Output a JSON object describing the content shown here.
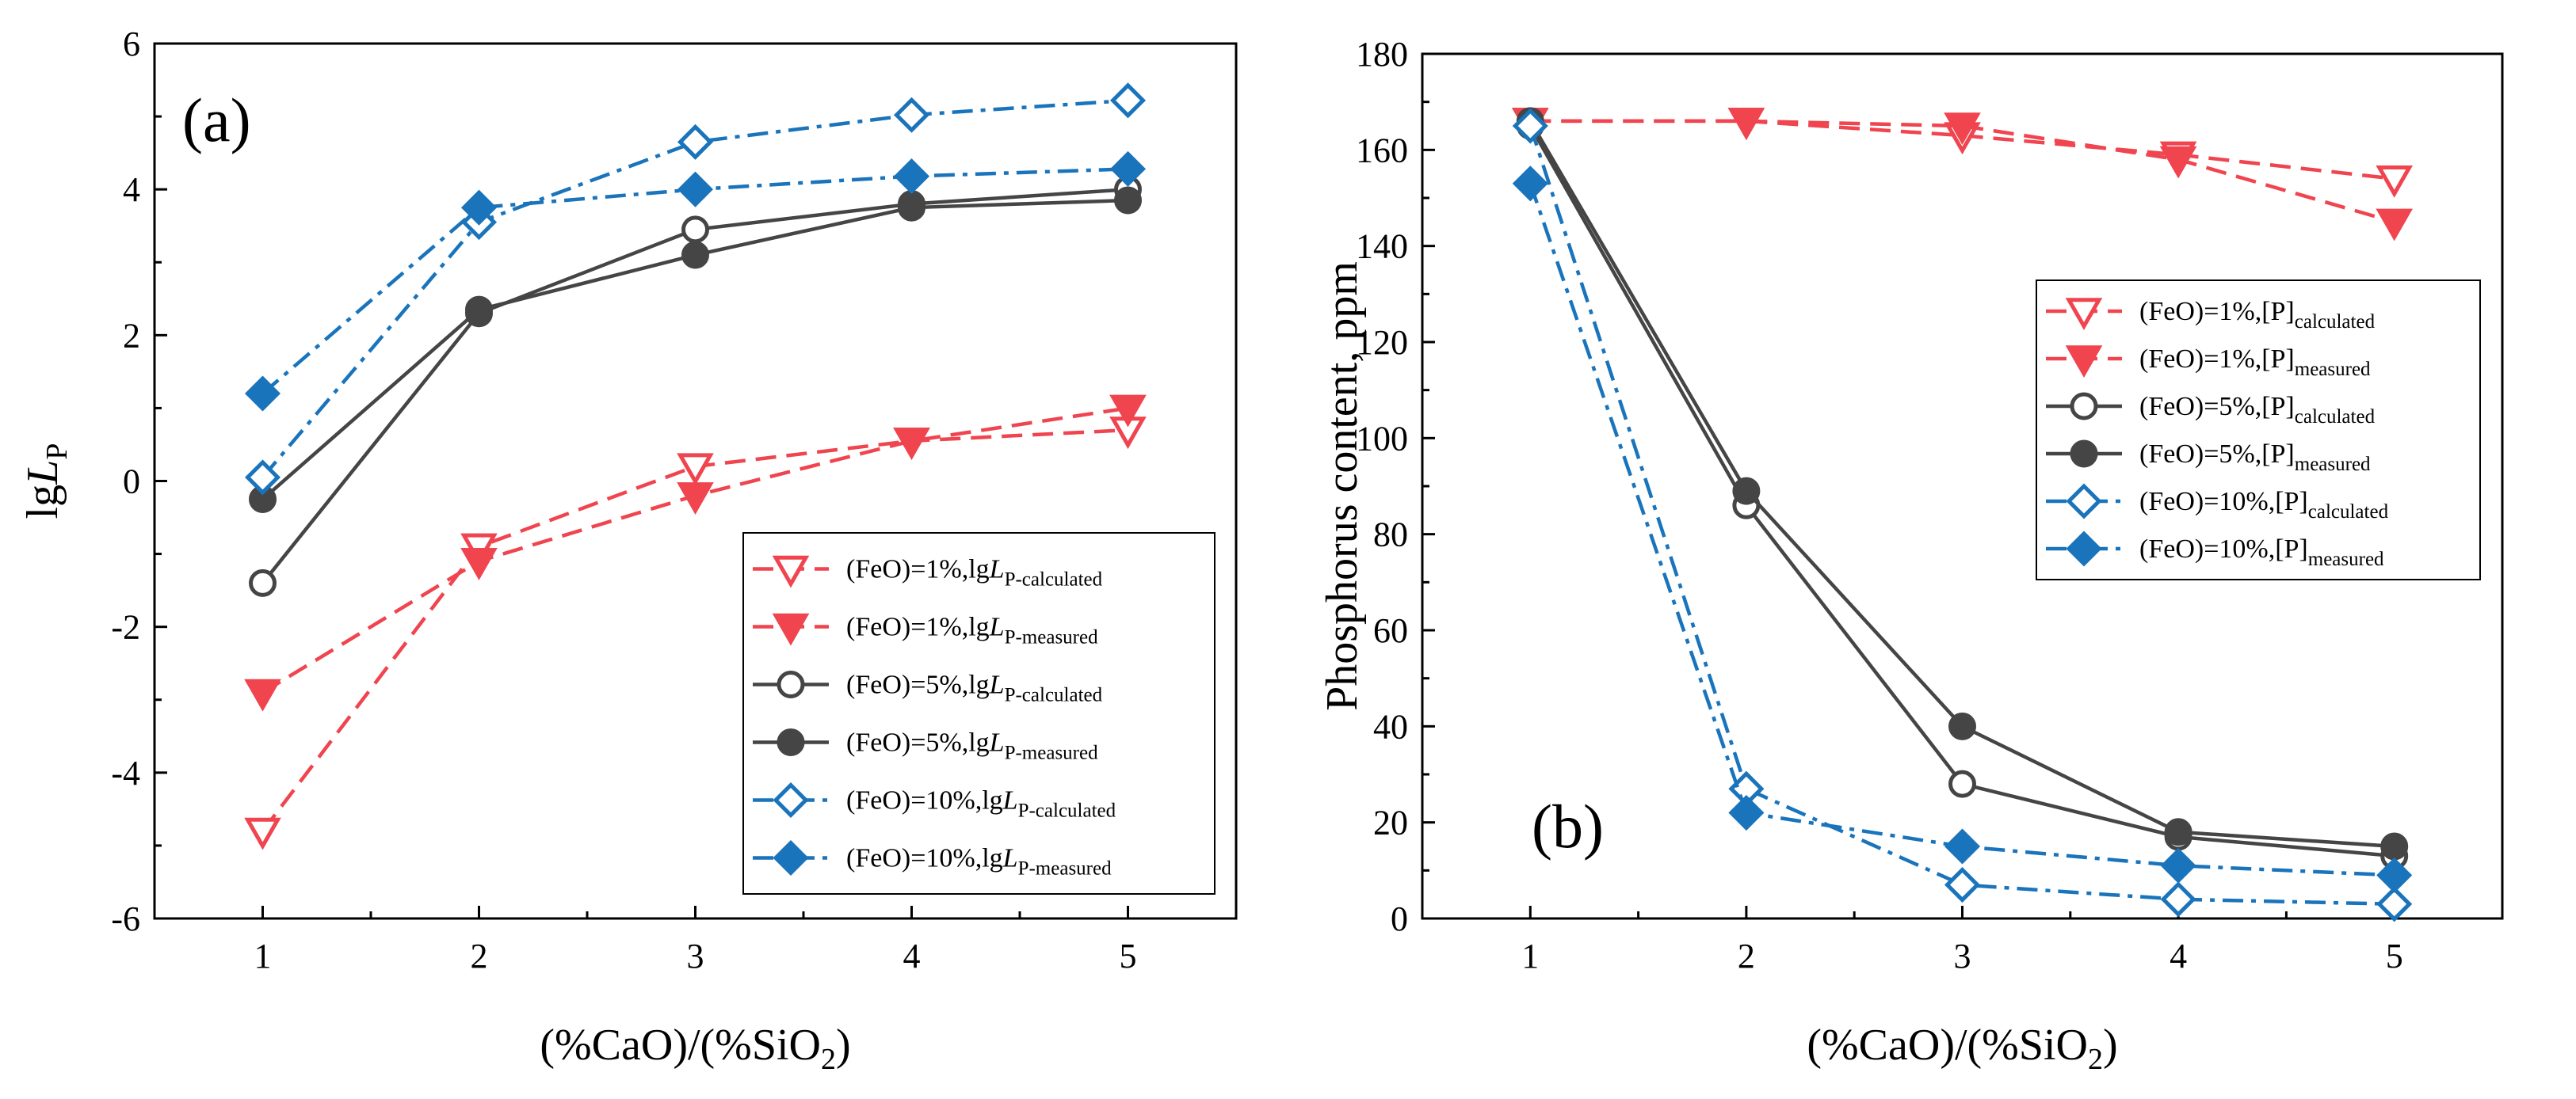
{
  "chart_data": [
    {
      "type": "line",
      "panel_label": "(a)",
      "xlabel": "(%CaO)/(%SiO",
      "xlabel_sub": "2",
      "xlabel_end": ")",
      "ylabel": "lg",
      "ylabel_italic": "L",
      "ylabel_sub": "P",
      "xlim": [
        0.5,
        5.5
      ],
      "ylim": [
        -6,
        6
      ],
      "xticks": [
        "1",
        "2",
        "3",
        "4",
        "5"
      ],
      "yticks": [
        "-6",
        "-4",
        "-2",
        "0",
        "2",
        "4",
        "6"
      ],
      "x": [
        1,
        2,
        3,
        4,
        5
      ],
      "legend_position": "lower-right",
      "series": [
        {
          "name": "(FeO)=1%,lg",
          "name_italic": "L",
          "name_sub": "P-calculated",
          "color": "#f0444f",
          "marker": "triangle-down",
          "filled": false,
          "dash": "dash",
          "values": [
            -4.8,
            -0.9,
            0.2,
            0.55,
            0.7
          ]
        },
        {
          "name": "(FeO)=1%,lg",
          "name_italic": "L",
          "name_sub": "P-measured",
          "color": "#f0444f",
          "marker": "triangle-down",
          "filled": true,
          "dash": "dash",
          "values": [
            -2.9,
            -1.1,
            -0.2,
            0.55,
            1.0
          ]
        },
        {
          "name": "(FeO)=5%,lg",
          "name_italic": "L",
          "name_sub": "P-calculated",
          "color": "#454545",
          "marker": "circle",
          "filled": false,
          "dash": "solid",
          "values": [
            -1.4,
            2.3,
            3.45,
            3.8,
            4.0
          ]
        },
        {
          "name": "(FeO)=5%,lg",
          "name_italic": "L",
          "name_sub": "P-measured",
          "color": "#454545",
          "marker": "circle",
          "filled": true,
          "dash": "solid",
          "values": [
            -0.25,
            2.35,
            3.1,
            3.75,
            3.85
          ]
        },
        {
          "name": "(FeO)=10%,lg",
          "name_italic": "L",
          "name_sub": "P-calculated",
          "color": "#1a74bb",
          "marker": "diamond",
          "filled": false,
          "dash": "dashdot",
          "values": [
            0.05,
            3.55,
            4.65,
            5.02,
            5.22
          ]
        },
        {
          "name": "(FeO)=10%,lg",
          "name_italic": "L",
          "name_sub": "P-measured",
          "color": "#1a74bb",
          "marker": "diamond",
          "filled": true,
          "dash": "dashdot",
          "values": [
            1.2,
            3.75,
            4.0,
            4.18,
            4.28
          ]
        }
      ]
    },
    {
      "type": "line",
      "panel_label": "(b)",
      "xlabel": "(%CaO)/(%SiO",
      "xlabel_sub": "2",
      "xlabel_end": ")",
      "ylabel": "Phosphorus content, ppm",
      "xlim": [
        0.5,
        5.5
      ],
      "ylim": [
        0,
        180
      ],
      "xticks": [
        "1",
        "2",
        "3",
        "4",
        "5"
      ],
      "yticks": [
        "0",
        "20",
        "40",
        "60",
        "80",
        "100",
        "120",
        "140",
        "160",
        "180"
      ],
      "x": [
        1,
        2,
        3,
        4,
        5
      ],
      "legend_position": "center-right",
      "series": [
        {
          "name": "(FeO)=1%,[P]",
          "name_sub": "calculated",
          "color": "#f0444f",
          "marker": "triangle-down",
          "filled": false,
          "dash": "dash",
          "values": [
            166,
            166,
            163,
            159,
            154
          ]
        },
        {
          "name": "(FeO)=1%,[P]",
          "name_sub": "measured",
          "color": "#f0444f",
          "marker": "triangle-down",
          "filled": true,
          "dash": "dash",
          "values": [
            166,
            166,
            165,
            158,
            145
          ]
        },
        {
          "name": "(FeO)=5%,[P]",
          "name_sub": "calculated",
          "color": "#454545",
          "marker": "circle",
          "filled": false,
          "dash": "solid",
          "values": [
            165,
            86,
            28,
            17,
            13
          ]
        },
        {
          "name": "(FeO)=5%,[P]",
          "name_sub": "measured",
          "color": "#454545",
          "marker": "circle",
          "filled": true,
          "dash": "solid",
          "values": [
            166,
            89,
            40,
            18,
            15
          ]
        },
        {
          "name": "(FeO)=10%,[P]",
          "name_sub": "calculated",
          "color": "#1a74bb",
          "marker": "diamond",
          "filled": false,
          "dash": "dashdot",
          "values": [
            165,
            27,
            7,
            4,
            3
          ]
        },
        {
          "name": "(FeO)=10%,[P]",
          "name_sub": "measured",
          "color": "#1a74bb",
          "marker": "diamond",
          "filled": true,
          "dash": "dashdot",
          "values": [
            153,
            22,
            15,
            11,
            9
          ]
        }
      ]
    }
  ]
}
